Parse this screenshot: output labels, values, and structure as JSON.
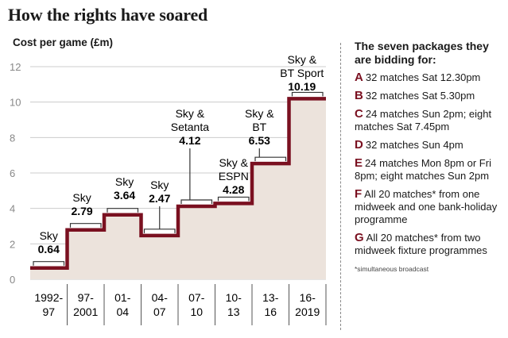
{
  "title": "How the rights have soared",
  "colors": {
    "step_line": "#7a1020",
    "fill": "#ece3dc",
    "grid": "#cccccc",
    "bracket": "#333333"
  },
  "chart_data": {
    "type": "line",
    "title": "How the rights have soared",
    "ylabel": "Cost per game (£m)",
    "ylim": [
      0,
      12
    ],
    "yticks": [
      0,
      2,
      4,
      6,
      8,
      10,
      12
    ],
    "grid": true,
    "categories": [
      "1992-97",
      "97-2001",
      "01-04",
      "04-07",
      "07-10",
      "10-13",
      "13-16",
      "16-2019"
    ],
    "x_tick_labels": [
      [
        "1992-",
        "97"
      ],
      [
        "97-",
        "2001"
      ],
      [
        "01-",
        "04"
      ],
      [
        "04-",
        "07"
      ],
      [
        "07-",
        "10"
      ],
      [
        "10-",
        "13"
      ],
      [
        "13-",
        "16"
      ],
      [
        "16-",
        "2019"
      ]
    ],
    "values": [
      0.64,
      2.79,
      3.64,
      2.47,
      4.12,
      4.28,
      6.53,
      10.19
    ],
    "broadcasters": [
      [
        "Sky"
      ],
      [
        "Sky"
      ],
      [
        "Sky"
      ],
      [
        "Sky"
      ],
      [
        "Sky &",
        "Setanta"
      ],
      [
        "Sky &",
        "ESPN"
      ],
      [
        "Sky &",
        "BT"
      ],
      [
        "Sky &",
        "BT Sport"
      ]
    ],
    "value_labels": [
      "0.64",
      "2.79",
      "3.64",
      "2.47",
      "4.12",
      "4.28",
      "6.53",
      "10.19"
    ]
  },
  "packages": {
    "title": "The seven packages they are bidding for:",
    "items": [
      {
        "letter": "A",
        "text": "32 matches Sat 12.30pm"
      },
      {
        "letter": "B",
        "text": "32 matches Sat 5.30pm"
      },
      {
        "letter": "C",
        "text": "24 matches Sun 2pm; eight matches Sat 7.45pm"
      },
      {
        "letter": "D",
        "text": "32 matches Sun 4pm"
      },
      {
        "letter": "E",
        "text": "24 matches Mon 8pm or Fri 8pm; eight matches Sun 2pm"
      },
      {
        "letter": "F",
        "text": "All 20 matches* from one midweek and one bank-holiday programme"
      },
      {
        "letter": "G",
        "text": "All 20 matches* from two midweek fixture programmes"
      }
    ],
    "footnote": "*simultaneous broadcast"
  }
}
